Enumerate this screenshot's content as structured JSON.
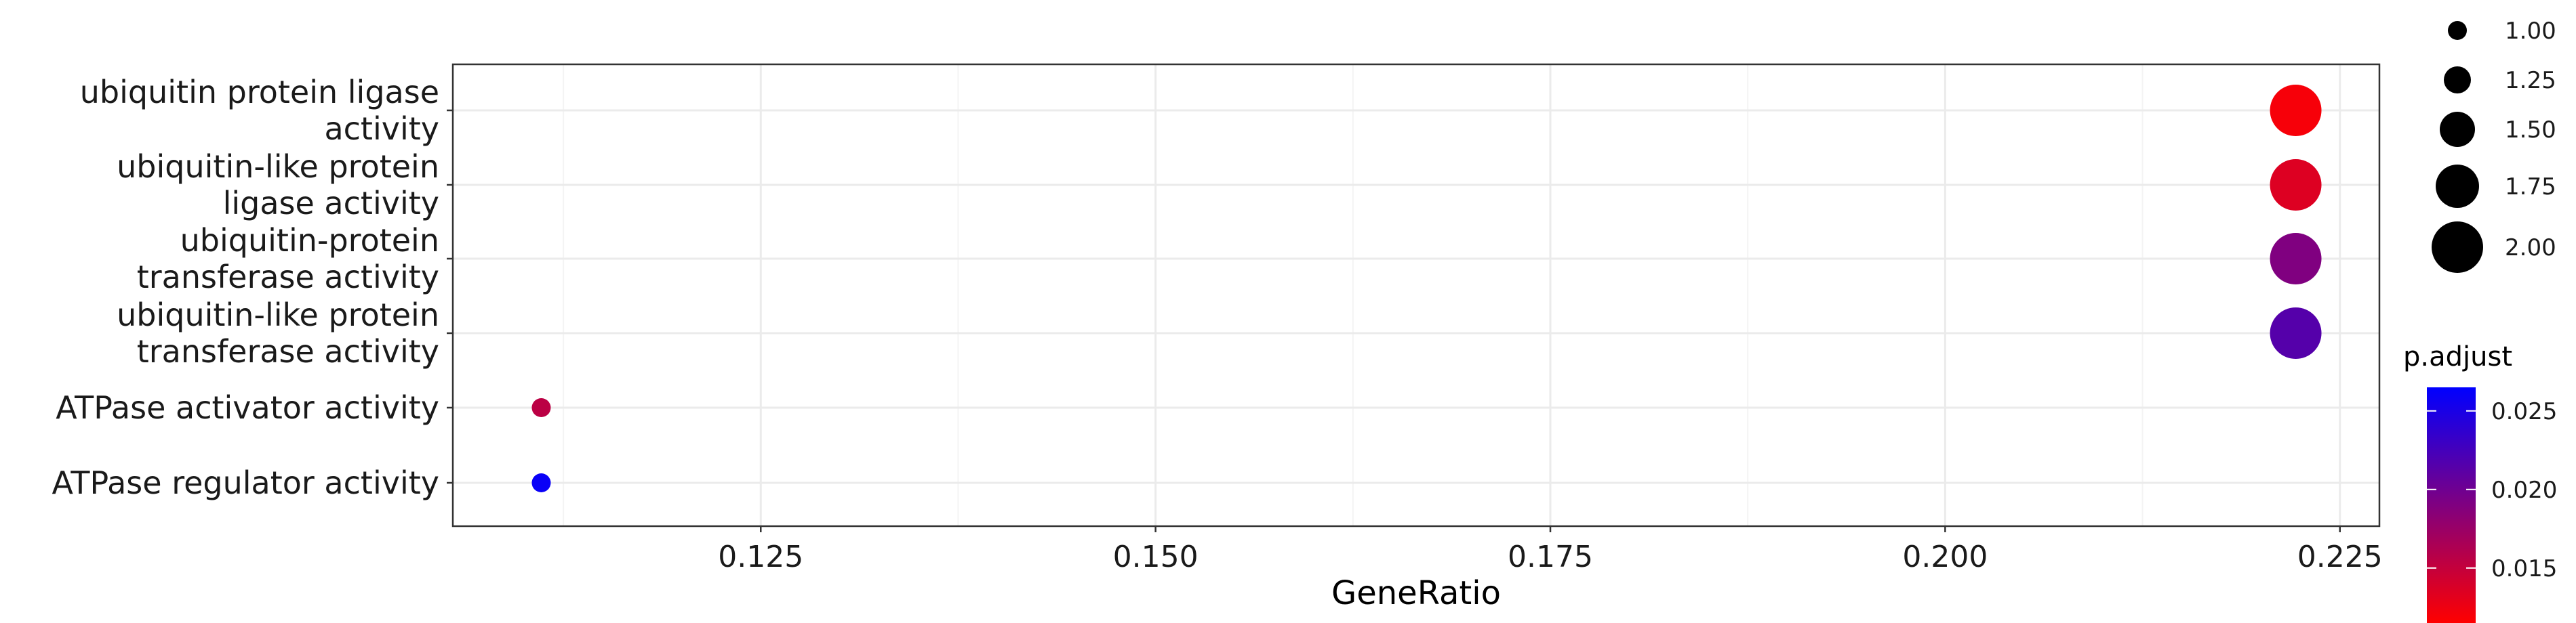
{
  "chart_data": {
    "type": "scatter",
    "xlabel": "GeneRatio",
    "ylabel": "",
    "xlim": [
      0.1055,
      0.2275
    ],
    "x_ticks": [
      0.125,
      0.15,
      0.175,
      0.2,
      0.225
    ],
    "x_tick_labels": [
      "0.125",
      "0.150",
      "0.175",
      "0.200",
      "0.225"
    ],
    "categories": [
      [
        "ubiquitin protein ligase",
        "activity"
      ],
      [
        "ubiquitin-like protein",
        "ligase activity"
      ],
      [
        "ubiquitin-protein",
        "transferase activity"
      ],
      [
        "ubiquitin-like protein",
        "transferase activity"
      ],
      [
        "ATPase activator activity"
      ],
      [
        "ATPase regulator activity"
      ]
    ],
    "points": [
      {
        "x": 0.2222,
        "count": 2,
        "p_adjust": 0.012
      },
      {
        "x": 0.2222,
        "count": 2,
        "p_adjust": 0.0135
      },
      {
        "x": 0.2222,
        "count": 2,
        "p_adjust": 0.019
      },
      {
        "x": 0.2222,
        "count": 2,
        "p_adjust": 0.0215
      },
      {
        "x": 0.1111,
        "count": 1,
        "p_adjust": 0.0155
      },
      {
        "x": 0.1111,
        "count": 1,
        "p_adjust": 0.026
      }
    ],
    "size_legend": {
      "values": [
        1.0,
        1.25,
        1.5,
        1.75,
        2.0
      ],
      "labels": [
        "1.00",
        "1.25",
        "1.50",
        "1.75",
        "2.00"
      ]
    },
    "color_legend": {
      "title": "p.adjust",
      "range": [
        0.0115,
        0.0265
      ],
      "ticks": [
        0.015,
        0.02,
        0.025
      ],
      "tick_labels": [
        "0.015",
        "0.020",
        "0.025"
      ],
      "low_color": "#ff0000",
      "high_color": "#0000ff"
    },
    "grid": true,
    "legend_position": "right"
  }
}
